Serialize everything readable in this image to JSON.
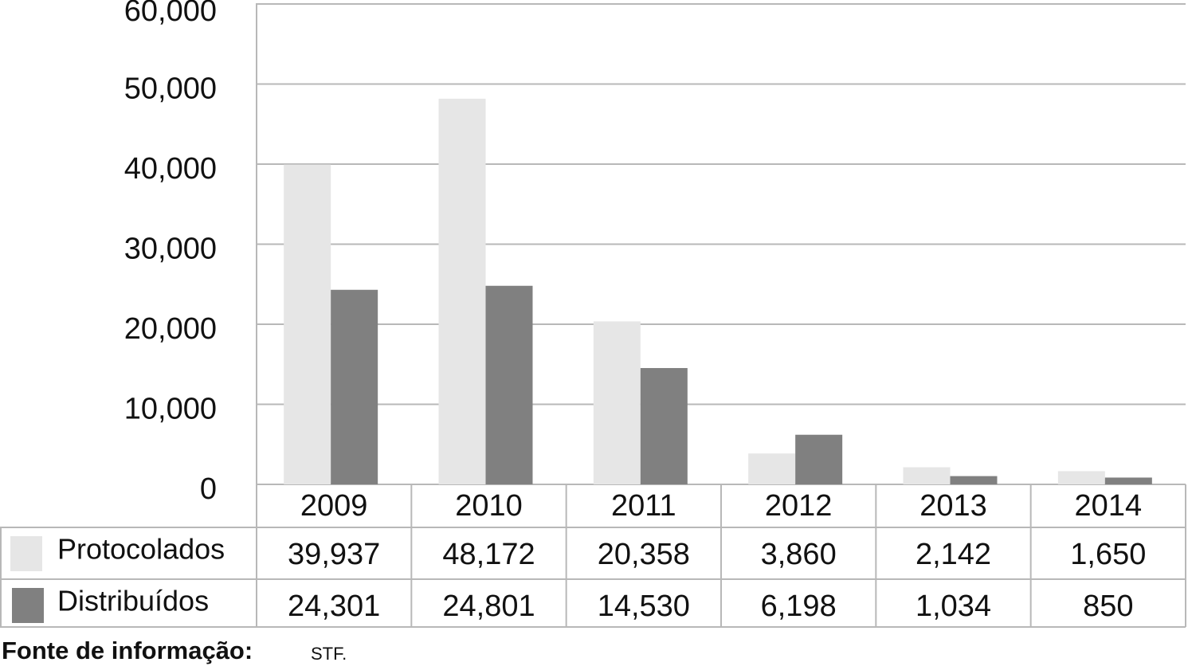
{
  "chart_data": {
    "type": "bar",
    "categories": [
      "2009",
      "2010",
      "2011",
      "2012",
      "2013",
      "2014"
    ],
    "series": [
      {
        "name": "Protocolados",
        "color": "#e6e6e6",
        "values": [
          39937,
          48172,
          20358,
          3860,
          2142,
          1650
        ],
        "value_labels": [
          "39,937",
          "48,172",
          "20,358",
          "3,860",
          "2,142",
          "1,650"
        ]
      },
      {
        "name": "Distribuídos",
        "color": "#808080",
        "values": [
          24301,
          24801,
          14530,
          6198,
          1034,
          850
        ],
        "value_labels": [
          "24,301",
          "24,801",
          "14,530",
          "6,198",
          "1,034",
          "850"
        ]
      }
    ],
    "ylim": [
      0,
      60000
    ],
    "yticks": [
      0,
      {
        "value": 10000,
        "label": "10,000"
      },
      {
        "value": 20000,
        "label": "20,000"
      },
      {
        "value": 30000,
        "label": "30,000"
      },
      {
        "value": 40000,
        "label": "40,000"
      },
      {
        "value": 50000,
        "label": "50,000"
      },
      {
        "value": 60000,
        "label": "60,000"
      }
    ],
    "grid": true,
    "source": {
      "label": "Fonte de informação:",
      "text": "STF."
    }
  }
}
